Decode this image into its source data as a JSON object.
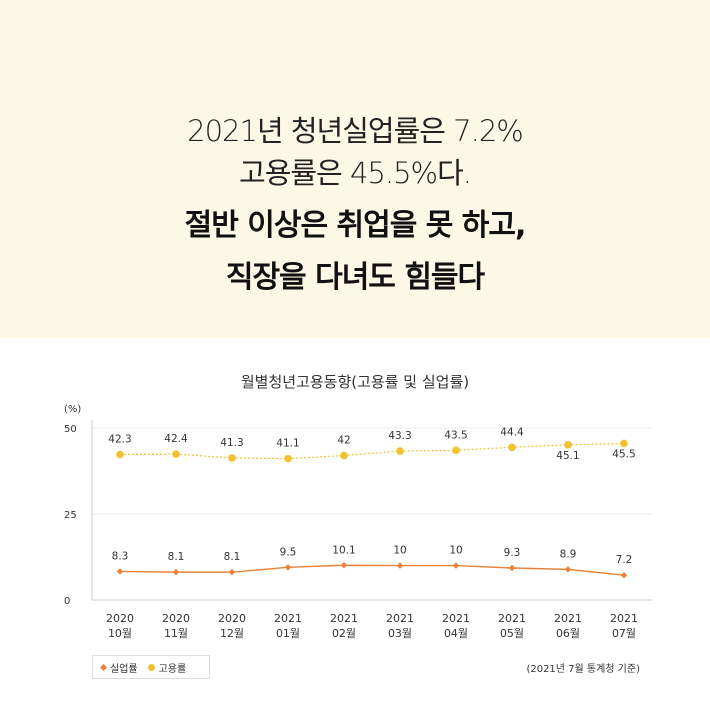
{
  "headline": {
    "line1": "2021년 청년실업률은 7.2%",
    "line2": "고용률은 45.5%다.",
    "line3": "절반 이상은 취업을 못 하고,",
    "line4": "직장을 다녀도 힘들다"
  },
  "colors": {
    "banner_bg": "#fdf8e5",
    "unemployment": "#e8833a",
    "employment": "#f2c12e"
  },
  "source_note": "(2021년 7월 통계청 기준)",
  "chart_data": {
    "type": "line",
    "title": "월별청년고용동향(고용률 및 실업률)",
    "ylabel": "(%)",
    "xlabel": "",
    "ylim": [
      0,
      50
    ],
    "yticks": [
      0,
      25,
      50
    ],
    "grid": true,
    "legend_position": "bottom-left",
    "categories": [
      {
        "year": "2020",
        "month": "10월"
      },
      {
        "year": "2020",
        "month": "11월"
      },
      {
        "year": "2020",
        "month": "12월"
      },
      {
        "year": "2021",
        "month": "01월"
      },
      {
        "year": "2021",
        "month": "02월"
      },
      {
        "year": "2021",
        "month": "03월"
      },
      {
        "year": "2021",
        "month": "04월"
      },
      {
        "year": "2021",
        "month": "05월"
      },
      {
        "year": "2021",
        "month": "06월"
      },
      {
        "year": "2021",
        "month": "07월"
      }
    ],
    "series": [
      {
        "name": "실업률",
        "marker": "diamond",
        "line": "solid",
        "color": "#e8833a",
        "values": [
          8.3,
          8.1,
          8.1,
          9.5,
          10.1,
          10,
          10,
          9.3,
          8.9,
          7.2
        ]
      },
      {
        "name": "고용률",
        "marker": "circle",
        "line": "dotted",
        "color": "#f2c12e",
        "values": [
          42.3,
          42.4,
          41.3,
          41.1,
          42,
          43.3,
          43.5,
          44.4,
          45.1,
          45.5
        ]
      }
    ]
  }
}
